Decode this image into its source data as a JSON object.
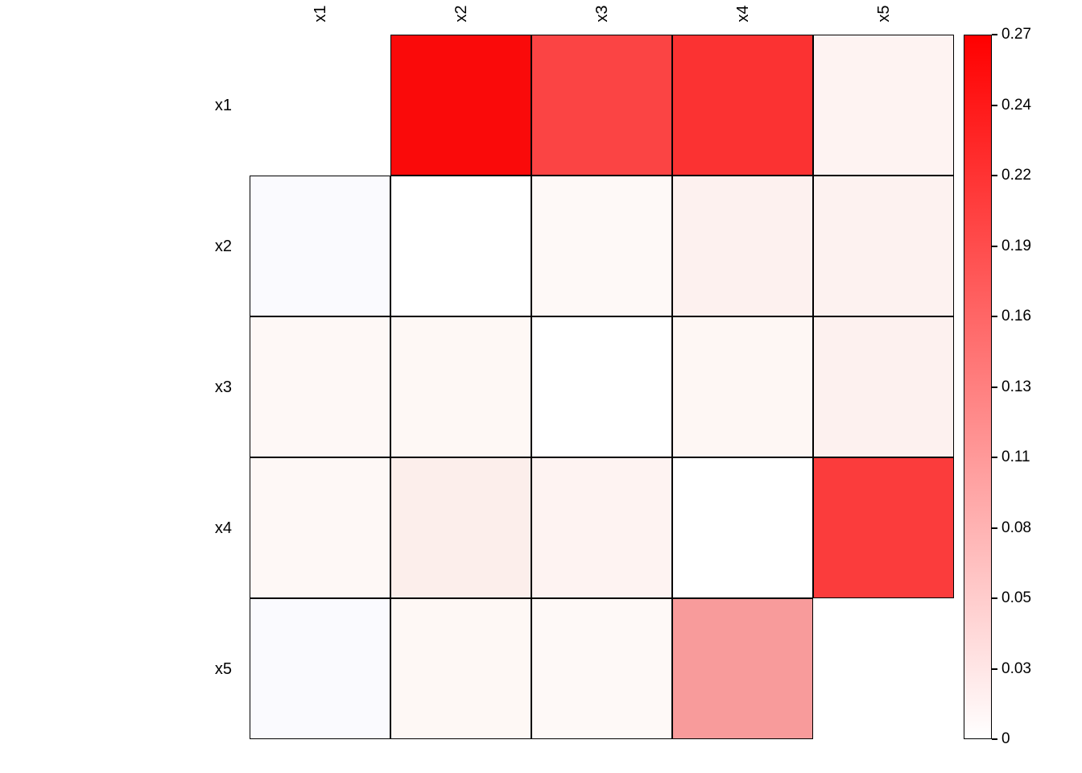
{
  "chart_data": {
    "type": "heatmap",
    "title": "",
    "rows": [
      "x1",
      "x2",
      "x3",
      "x4",
      "x5"
    ],
    "columns": [
      "x1",
      "x2",
      "x3",
      "x4",
      "x5"
    ],
    "values": [
      [
        null,
        0.26,
        0.21,
        0.22,
        0.01
      ],
      [
        0.0,
        0.0,
        0.01,
        0.02,
        0.02
      ],
      [
        0.01,
        0.01,
        0.0,
        0.01,
        0.02
      ],
      [
        0.01,
        0.03,
        0.01,
        0.0,
        0.22
      ],
      [
        0.0,
        0.01,
        0.01,
        0.11,
        null
      ]
    ],
    "cell_colors": [
      [
        null,
        "#FA0A0A",
        "#FB4444",
        "#FB3232",
        "#FEF3F2"
      ],
      [
        "#FAFAFE",
        "#FFFFFF",
        "#FEF9F7",
        "#FDF1EF",
        "#FDF2F0"
      ],
      [
        "#FEF8F6",
        "#FEF8F5",
        "#FFFFFF",
        "#FEF7F4",
        "#FDF1EF"
      ],
      [
        "#FEF8F6",
        "#FCEEEB",
        "#FEF3F2",
        "#FFFFFF",
        "#FB3C3C"
      ],
      [
        "#FAFAFE",
        "#FEF8F5",
        "#FEF9F7",
        "#F89B9B",
        null
      ]
    ],
    "missing_cells": [
      [
        0,
        0
      ],
      [
        4,
        4
      ]
    ],
    "grid": true,
    "legend_position": "right",
    "colorbar": {
      "min": 0,
      "max": 0.27,
      "tick_labels": [
        "0.27",
        "0.24",
        "0.22",
        "0.19",
        "0.16",
        "0.13",
        "0.11",
        "0.08",
        "0.05",
        "0.03",
        "0"
      ],
      "gradient_top": "#FF0000",
      "gradient_bottom": "#FFFFFF"
    }
  },
  "colors": {
    "background": "#FFFFFF",
    "grid_line": "#000000",
    "text": "#000000"
  }
}
